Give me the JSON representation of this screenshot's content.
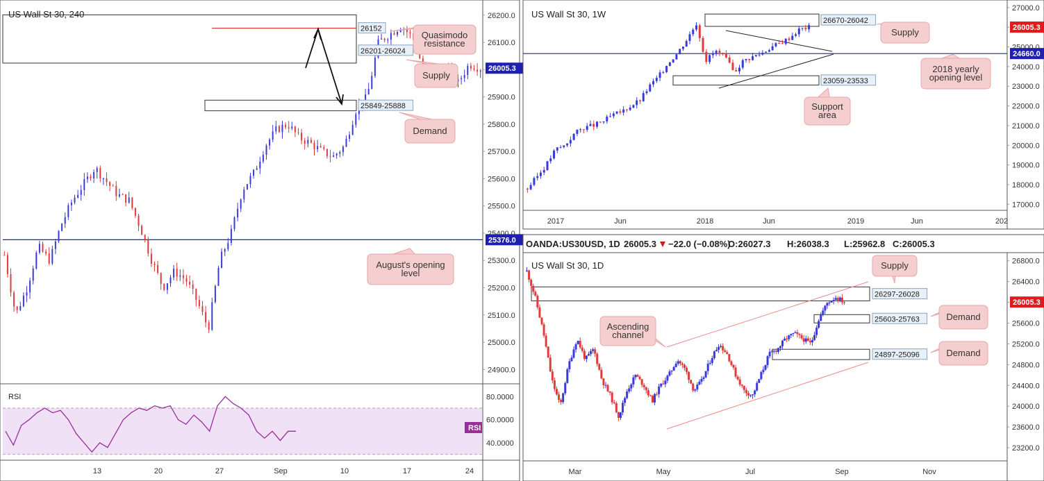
{
  "colors": {
    "bull": "#3a3adb",
    "bear": "#e03a3a",
    "callout_fill": "#f5cfd0",
    "callout_stroke": "#e8a4a6",
    "level": "#1f1fb0",
    "rsi": "#9b2d9b",
    "rsi_band": "#f0e1f7",
    "trend": "#ef8a8a"
  },
  "panels": {
    "h4": {
      "title": "US Wall St 30, 240",
      "chart_data": {
        "type": "candlestick",
        "ylim": [
          24860,
          26230
        ],
        "y_ticks": [
          "26200.0",
          "26100.0",
          "26000.0",
          "25900.0",
          "25800.0",
          "25700.0",
          "25600.0",
          "25500.0",
          "25400.0",
          "25300.0",
          "25200.0",
          "25100.0",
          "25000.0",
          "24900.0"
        ],
        "x_ticks": [
          "13",
          "20",
          "27",
          "Sep",
          "10",
          "17",
          "24"
        ],
        "zones": [
          {
            "label": "26201-26024",
            "top": 26201,
            "bottom": 26024
          },
          {
            "label": "25849-25888",
            "top": 25888,
            "bottom": 25849
          }
        ],
        "levels": [
          {
            "label": "25376.0",
            "value": 25376
          },
          {
            "label": "26152",
            "value": 26152
          }
        ],
        "last_price": "26005.3",
        "close_path": [
          25320,
          25100,
          25200,
          25350,
          25300,
          25430,
          25520,
          25580,
          25640,
          25590,
          25540,
          25520,
          25420,
          25300,
          25200,
          25260,
          25230,
          25150,
          25050,
          25300,
          25400,
          25560,
          25620,
          25720,
          25780,
          25800,
          25750,
          25730,
          25700,
          25680,
          25720,
          25850,
          25900,
          26100,
          26130,
          26160,
          26120,
          26000,
          25960,
          26010,
          25950,
          26020,
          26005
        ]
      },
      "annotations": [
        "Quasimodo resistance",
        "Supply",
        "Demand",
        "August's opening level"
      ],
      "rsi": {
        "label": "RSI",
        "y_ticks": [
          "80.0000",
          "60.0000",
          "40.0000"
        ],
        "values": [
          50,
          38,
          55,
          60,
          66,
          70,
          66,
          68,
          60,
          48,
          40,
          32,
          40,
          36,
          48,
          60,
          66,
          70,
          68,
          72,
          70,
          72,
          60,
          56,
          64,
          58,
          50,
          72,
          80,
          74,
          70,
          64,
          50,
          44,
          50,
          42,
          50,
          50
        ],
        "badge": "RSI"
      }
    },
    "w1": {
      "title": "US Wall St 30, 1W",
      "chart_data": {
        "type": "candlestick",
        "ylim": [
          16800,
          27100
        ],
        "y_ticks": [
          "27000.0",
          "26000.0",
          "25000.0",
          "24000.0",
          "23000.0",
          "22000.0",
          "21000.0",
          "20000.0",
          "19000.0",
          "18000.0",
          "17000.0"
        ],
        "x_ticks": [
          "2017",
          "Jun",
          "2018",
          "Jun",
          "2019",
          "Jun",
          "202"
        ],
        "zones": [
          {
            "label": "26670-26042",
            "top": 26670,
            "bottom": 26042
          },
          {
            "label": "23059-23533",
            "top": 23533,
            "bottom": 23059
          }
        ],
        "levels": [
          {
            "label": "24660.0",
            "value": 24660
          }
        ],
        "last_price": "26005.3",
        "close_path": [
          17800,
          18400,
          19000,
          19800,
          20000,
          20600,
          20900,
          21000,
          21200,
          21500,
          21700,
          22000,
          22300,
          23000,
          23500,
          24200,
          24700,
          25400,
          26200,
          24300,
          24800,
          24500,
          23700,
          24300,
          24500,
          24700,
          25000,
          25200,
          25500,
          25900,
          26005
        ]
      },
      "annotations": [
        "Supply",
        "2018 yearly opening level",
        "Support area"
      ]
    },
    "d1": {
      "header": {
        "symbol": "OANDA:US30USD, 1D",
        "price": "26005.3",
        "change": "−22.0 (−0.08%)",
        "o": "O:26027.3",
        "h": "H:26038.3",
        "l": "L:25962.8",
        "c": "C:26005.3"
      },
      "title": "US Wall St 30, 1D",
      "chart_data": {
        "type": "candlestick",
        "ylim": [
          23000,
          26850
        ],
        "y_ticks": [
          "26800.0",
          "26400.0",
          "26000.0",
          "25600.0",
          "25200.0",
          "24800.0",
          "24400.0",
          "24000.0",
          "23600.0",
          "23200.0"
        ],
        "x_ticks": [
          "Mar",
          "May",
          "Jul",
          "Sep",
          "Nov"
        ],
        "zones": [
          {
            "label": "26297-26028",
            "top": 26297,
            "bottom": 26028
          },
          {
            "label": "25603-25763",
            "top": 25763,
            "bottom": 25603
          },
          {
            "label": "24897-25096",
            "top": 25096,
            "bottom": 24897
          }
        ],
        "last_price": "26005.3",
        "close_path": [
          26600,
          26100,
          25400,
          24500,
          24000,
          24800,
          25300,
          24900,
          25100,
          24500,
          24200,
          23800,
          24300,
          24600,
          24400,
          24100,
          24400,
          24600,
          24900,
          24700,
          24300,
          24500,
          24900,
          25200,
          25000,
          24600,
          24300,
          24200,
          24600,
          25000,
          25100,
          25300,
          25400,
          25300,
          25200,
          25700,
          26000,
          26100,
          26005
        ]
      },
      "annotations": [
        "Supply",
        "Demand",
        "Demand",
        "Ascending channel"
      ]
    }
  }
}
